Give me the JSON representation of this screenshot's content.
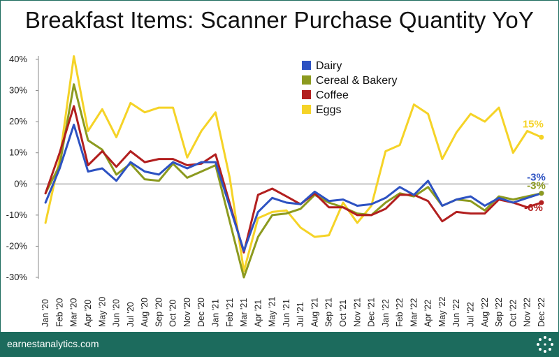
{
  "title": "Breakfast Items: Scanner Purchase Quantity YoY",
  "footer": {
    "brand": "earnestanalytics.com",
    "logo_icon": "dotted-circle-logo-icon"
  },
  "chart_data": {
    "type": "line",
    "title": "Breakfast Items: Scanner Purchase Quantity YoY",
    "xlabel": "",
    "ylabel": "",
    "ylim": [
      -30,
      40
    ],
    "yticks": [
      -30,
      -20,
      -10,
      0,
      10,
      20,
      30,
      40
    ],
    "ytick_labels": [
      "-30%",
      "-20%",
      "-10%",
      "0%",
      "10%",
      "20%",
      "30%",
      "40%"
    ],
    "grid": false,
    "legend": "top-center",
    "categories": [
      "Jan '20",
      "Feb '20",
      "Mar '20",
      "Apr '20",
      "May '20",
      "Jun '20",
      "Jul '20",
      "Aug '20",
      "Sep '20",
      "Oct '20",
      "Nov '20",
      "Dec '20",
      "Jan '21",
      "Feb '21",
      "Mar '21",
      "Apr '21",
      "May '21",
      "Jun '21",
      "Jul '21",
      "Aug '21",
      "Sep '21",
      "Oct '21",
      "Nov '21",
      "Dec '21",
      "Jan '22",
      "Feb '22",
      "Mar '22",
      "Apr '22",
      "May '22",
      "Jun '22",
      "Jul '22",
      "Aug '22",
      "Sep '22",
      "Oct '22",
      "Nov '22",
      "Dec '22"
    ],
    "series": [
      {
        "name": "Dairy",
        "color": "#2d52c2",
        "values": [
          -6,
          5,
          19,
          4,
          5,
          1,
          7,
          4,
          3,
          7,
          5,
          7,
          7,
          null,
          -21.5,
          -9,
          -4.5,
          -6,
          -6.5,
          -2.5,
          -5.5,
          -5,
          -7,
          -6.5,
          -4.5,
          -1,
          -3.5,
          1,
          -7,
          -5,
          -4,
          -7,
          -4.5,
          -6,
          -4.5,
          -3
        ],
        "end_label": "-3%"
      },
      {
        "name": "Cereal & Bakery",
        "color": "#8c9a1f",
        "values": [
          -3,
          6,
          32,
          14,
          11,
          3,
          6.5,
          1.5,
          1,
          6.5,
          2,
          4,
          6,
          null,
          -30,
          -17,
          -10,
          -9.5,
          -8,
          -3.5,
          -6,
          -7.5,
          -9.5,
          -10,
          -6,
          -3,
          -4,
          -1,
          -7,
          -5,
          -5.5,
          -8.5,
          -4,
          -5,
          -4,
          -3
        ],
        "end_label": "-3%"
      },
      {
        "name": "Coffee",
        "color": "#b21f1f",
        "values": [
          -3,
          10,
          25,
          6,
          10.5,
          5.5,
          10.5,
          7,
          8,
          8,
          6,
          6.5,
          9.5,
          null,
          -22,
          -3.5,
          -1.5,
          -4,
          -6.5,
          -3,
          -7.5,
          -7.5,
          -10,
          -10,
          -8,
          -3.5,
          -3.5,
          -5.5,
          -12,
          -9,
          -9.5,
          -9.5,
          -5,
          -6,
          -7.5,
          -6
        ],
        "end_label": "-6%"
      },
      {
        "name": "Eggs",
        "color": "#f5d327",
        "values": [
          -12.5,
          8,
          41,
          17,
          24,
          15,
          26,
          23,
          24.5,
          24.5,
          8.5,
          17,
          23,
          2,
          -28,
          -11,
          -9,
          -8.5,
          -14,
          -17,
          -16.5,
          -6,
          -12.5,
          -7,
          10.5,
          12.5,
          25.5,
          22.5,
          8,
          16.5,
          22.5,
          20,
          24.5,
          10,
          17,
          15
        ],
        "end_label": "15%"
      }
    ]
  }
}
